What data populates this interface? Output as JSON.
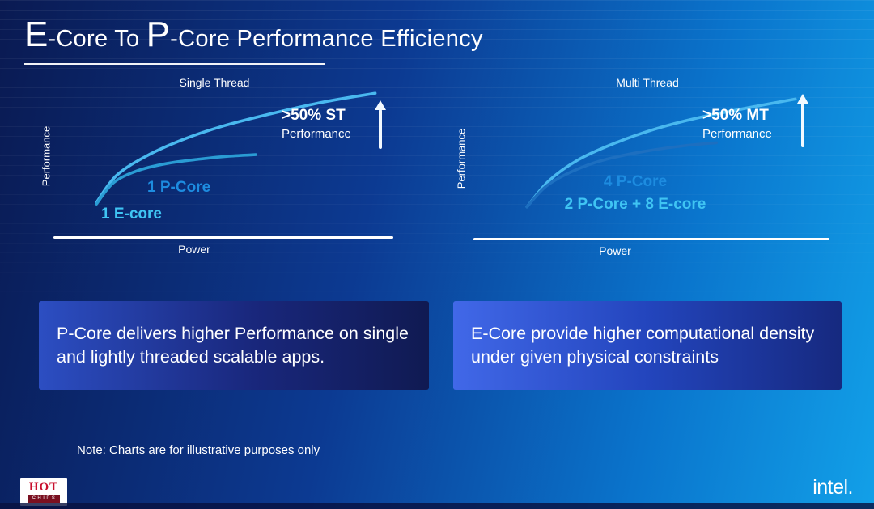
{
  "slide": {
    "title": {
      "e": "E",
      "e_rest": "-Core To ",
      "p": "P",
      "p_rest": "-Core Performance Efficiency"
    },
    "note": "Note: Charts are for illustrative purposes only"
  },
  "callouts": {
    "left": "P-Core delivers higher Performance on single and lightly threaded scalable apps.",
    "right": "E-Core provide higher computational density under given physical constraints"
  },
  "footer": {
    "hotchips": {
      "top": "HOT",
      "bottom": "CHIPS"
    },
    "intel": "intel."
  },
  "colors": {
    "p_core_label": "#1d8ce0",
    "e_core_label": "#3fc4f3",
    "axis": "#ffffff",
    "background_left": "#0a1a52",
    "background_right": "#12a0e8"
  },
  "chart_data": [
    {
      "type": "line",
      "title": "Single Thread",
      "xlabel": "Power",
      "ylabel": "Performance",
      "grid": false,
      "annotation": {
        "line1": ">50% ST",
        "line2": "Performance"
      },
      "series": [
        {
          "name": "1 P-Core",
          "color": "#49b8ef",
          "label_color": "#1d8ce0",
          "points": [
            [
              12,
              78
            ],
            [
              18,
              60
            ],
            [
              27,
              47
            ],
            [
              38,
              36
            ],
            [
              50,
              27
            ],
            [
              64,
              19
            ],
            [
              80,
              11
            ],
            [
              96,
              5
            ]
          ]
        },
        {
          "name": "1 E-core",
          "color": "#2a9cd4",
          "label_color": "#3fc4f3",
          "points": [
            [
              12,
              79
            ],
            [
              17,
              65
            ],
            [
              24,
              57
            ],
            [
              33,
              52
            ],
            [
              43,
              49
            ],
            [
              52,
              47
            ],
            [
              60,
              46
            ]
          ]
        }
      ]
    },
    {
      "type": "line",
      "title": "Multi Thread",
      "xlabel": "Power",
      "ylabel": "Performance",
      "grid": false,
      "annotation": {
        "line1": ">50% MT",
        "line2": "Performance"
      },
      "series": [
        {
          "name": "2 P-Core + 8 E-core",
          "color": "#49b8ef",
          "label_color": "#3fc4f3",
          "points": [
            [
              8,
              82
            ],
            [
              15,
              64
            ],
            [
              24,
              50
            ],
            [
              35,
              39
            ],
            [
              48,
              29
            ],
            [
              62,
              21
            ],
            [
              78,
              14
            ],
            [
              93,
              8
            ]
          ]
        },
        {
          "name": "4 P-Core",
          "color": "#1d6fc0",
          "label_color": "#1d8ce0",
          "points": [
            [
              8,
              82
            ],
            [
              14,
              68
            ],
            [
              22,
              58
            ],
            [
              32,
              50
            ],
            [
              45,
              44
            ],
            [
              58,
              40
            ],
            [
              68,
              38
            ]
          ]
        }
      ]
    }
  ]
}
